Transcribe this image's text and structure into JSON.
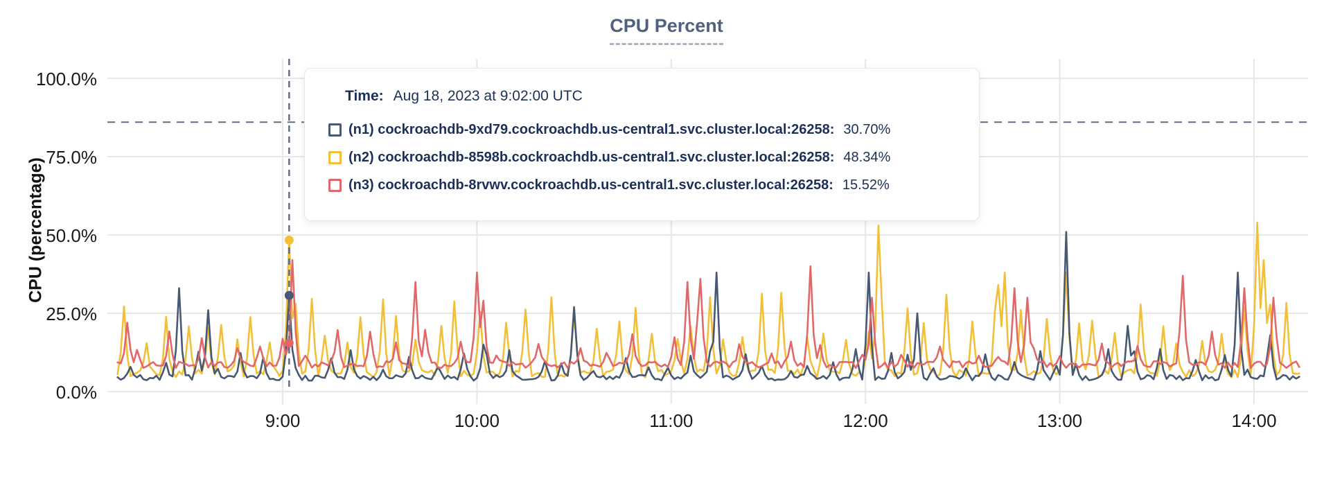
{
  "title": "CPU Percent",
  "y_axis_label": "CPU (percentage)",
  "tooltip": {
    "time_label": "Time:",
    "time_value": "Aug 18, 2023 at 9:02:00 UTC",
    "rows": [
      {
        "id": "n1",
        "label": "(n1) cockroachdb-9xd79.cockroachdb.us-central1.svc.cluster.local:26258:",
        "value": "30.70%"
      },
      {
        "id": "n2",
        "label": "(n2) cockroachdb-8598b.cockroachdb.us-central1.svc.cluster.local:26258:",
        "value": "48.34%"
      },
      {
        "id": "n3",
        "label": "(n3) cockroachdb-8rvwv.cockroachdb.us-central1.svc.cluster.local:26258:",
        "value": "15.52%"
      }
    ]
  },
  "colors": {
    "title": "#51607d",
    "tooltip_text": "#1b3057",
    "grid": "#e7e7e7",
    "dashed_guides": "#5f6c87"
  },
  "chart_data": {
    "type": "line",
    "title": "CPU Percent",
    "xlabel": "",
    "ylabel": "CPU (percentage)",
    "ylim": [
      0,
      100
    ],
    "grid": true,
    "x_range_minutes_of_day": [
      489,
      854
    ],
    "x_ticks": [
      {
        "minute": 540,
        "label": "9:00"
      },
      {
        "minute": 600,
        "label": "10:00"
      },
      {
        "minute": 660,
        "label": "11:00"
      },
      {
        "minute": 720,
        "label": "12:00"
      },
      {
        "minute": 780,
        "label": "13:00"
      },
      {
        "minute": 840,
        "label": "14:00"
      }
    ],
    "y_ticks": [
      {
        "pct": 0,
        "label": "0.0%"
      },
      {
        "pct": 25,
        "label": "25.0%"
      },
      {
        "pct": 50,
        "label": "50.0%"
      },
      {
        "pct": 75,
        "label": "75.0%"
      },
      {
        "pct": 100,
        "label": "100.0%"
      }
    ],
    "threshold_pct": 86,
    "hover": {
      "minute": 542,
      "time": "9:02",
      "values": {
        "n1": 30.7,
        "n2": 48.34,
        "n3": 15.52
      }
    },
    "series": [
      {
        "id": "n1",
        "name": "cockroachdb-9xd79.cockroachdb.us-central1.svc.cluster.local:26258",
        "color": "#475872",
        "seed": 42,
        "baseline": [
          3.5,
          1.8
        ],
        "bump": {
          "height": [
            6,
            14
          ],
          "gap": [
            5,
            11
          ],
          "start": 493
        },
        "peaks": [
          [
            508,
            33
          ],
          [
            517,
            26
          ],
          [
            542,
            30.7
          ],
          [
            602,
            15
          ],
          [
            630,
            27
          ],
          [
            674,
            38
          ],
          [
            721,
            38
          ],
          [
            736,
            25
          ],
          [
            782,
            51
          ],
          [
            801,
            21
          ],
          [
            835,
            38
          ],
          [
            845,
            18
          ]
        ]
      },
      {
        "id": "n2",
        "name": "cockroachdb-8598b.cockroachdb.us-central1.svc.cluster.local:26258",
        "color": "#f2c038",
        "seed": 7,
        "baseline": [
          4.5,
          2.6
        ],
        "bump": {
          "height": [
            15,
            32
          ],
          "gap": [
            4,
            8
          ],
          "start": 491
        },
        "peaks": [
          [
            542,
            48.34
          ],
          [
            724,
            53
          ],
          [
            761,
            34
          ],
          [
            763,
            38
          ],
          [
            782,
            38
          ],
          [
            841,
            54
          ],
          [
            843,
            42
          ]
        ]
      },
      {
        "id": "n3",
        "name": "cockroachdb-8rvwv.cockroachdb.us-central1.svc.cluster.local:26258",
        "color": "#e16868",
        "seed": 99,
        "baseline": [
          7.5,
          2.2
        ],
        "bump": {
          "height": [
            11,
            20
          ],
          "gap": [
            6,
            13
          ],
          "start": 495
        },
        "peaks": [
          [
            492,
            22
          ],
          [
            543,
            42
          ],
          [
            581,
            35
          ],
          [
            600,
            38
          ],
          [
            602,
            29
          ],
          [
            665,
            35
          ],
          [
            669,
            36
          ],
          [
            703,
            40
          ],
          [
            722,
            30
          ],
          [
            766,
            33
          ],
          [
            770,
            30
          ],
          [
            818,
            37
          ],
          [
            837,
            33
          ],
          [
            846,
            30
          ]
        ]
      }
    ]
  }
}
